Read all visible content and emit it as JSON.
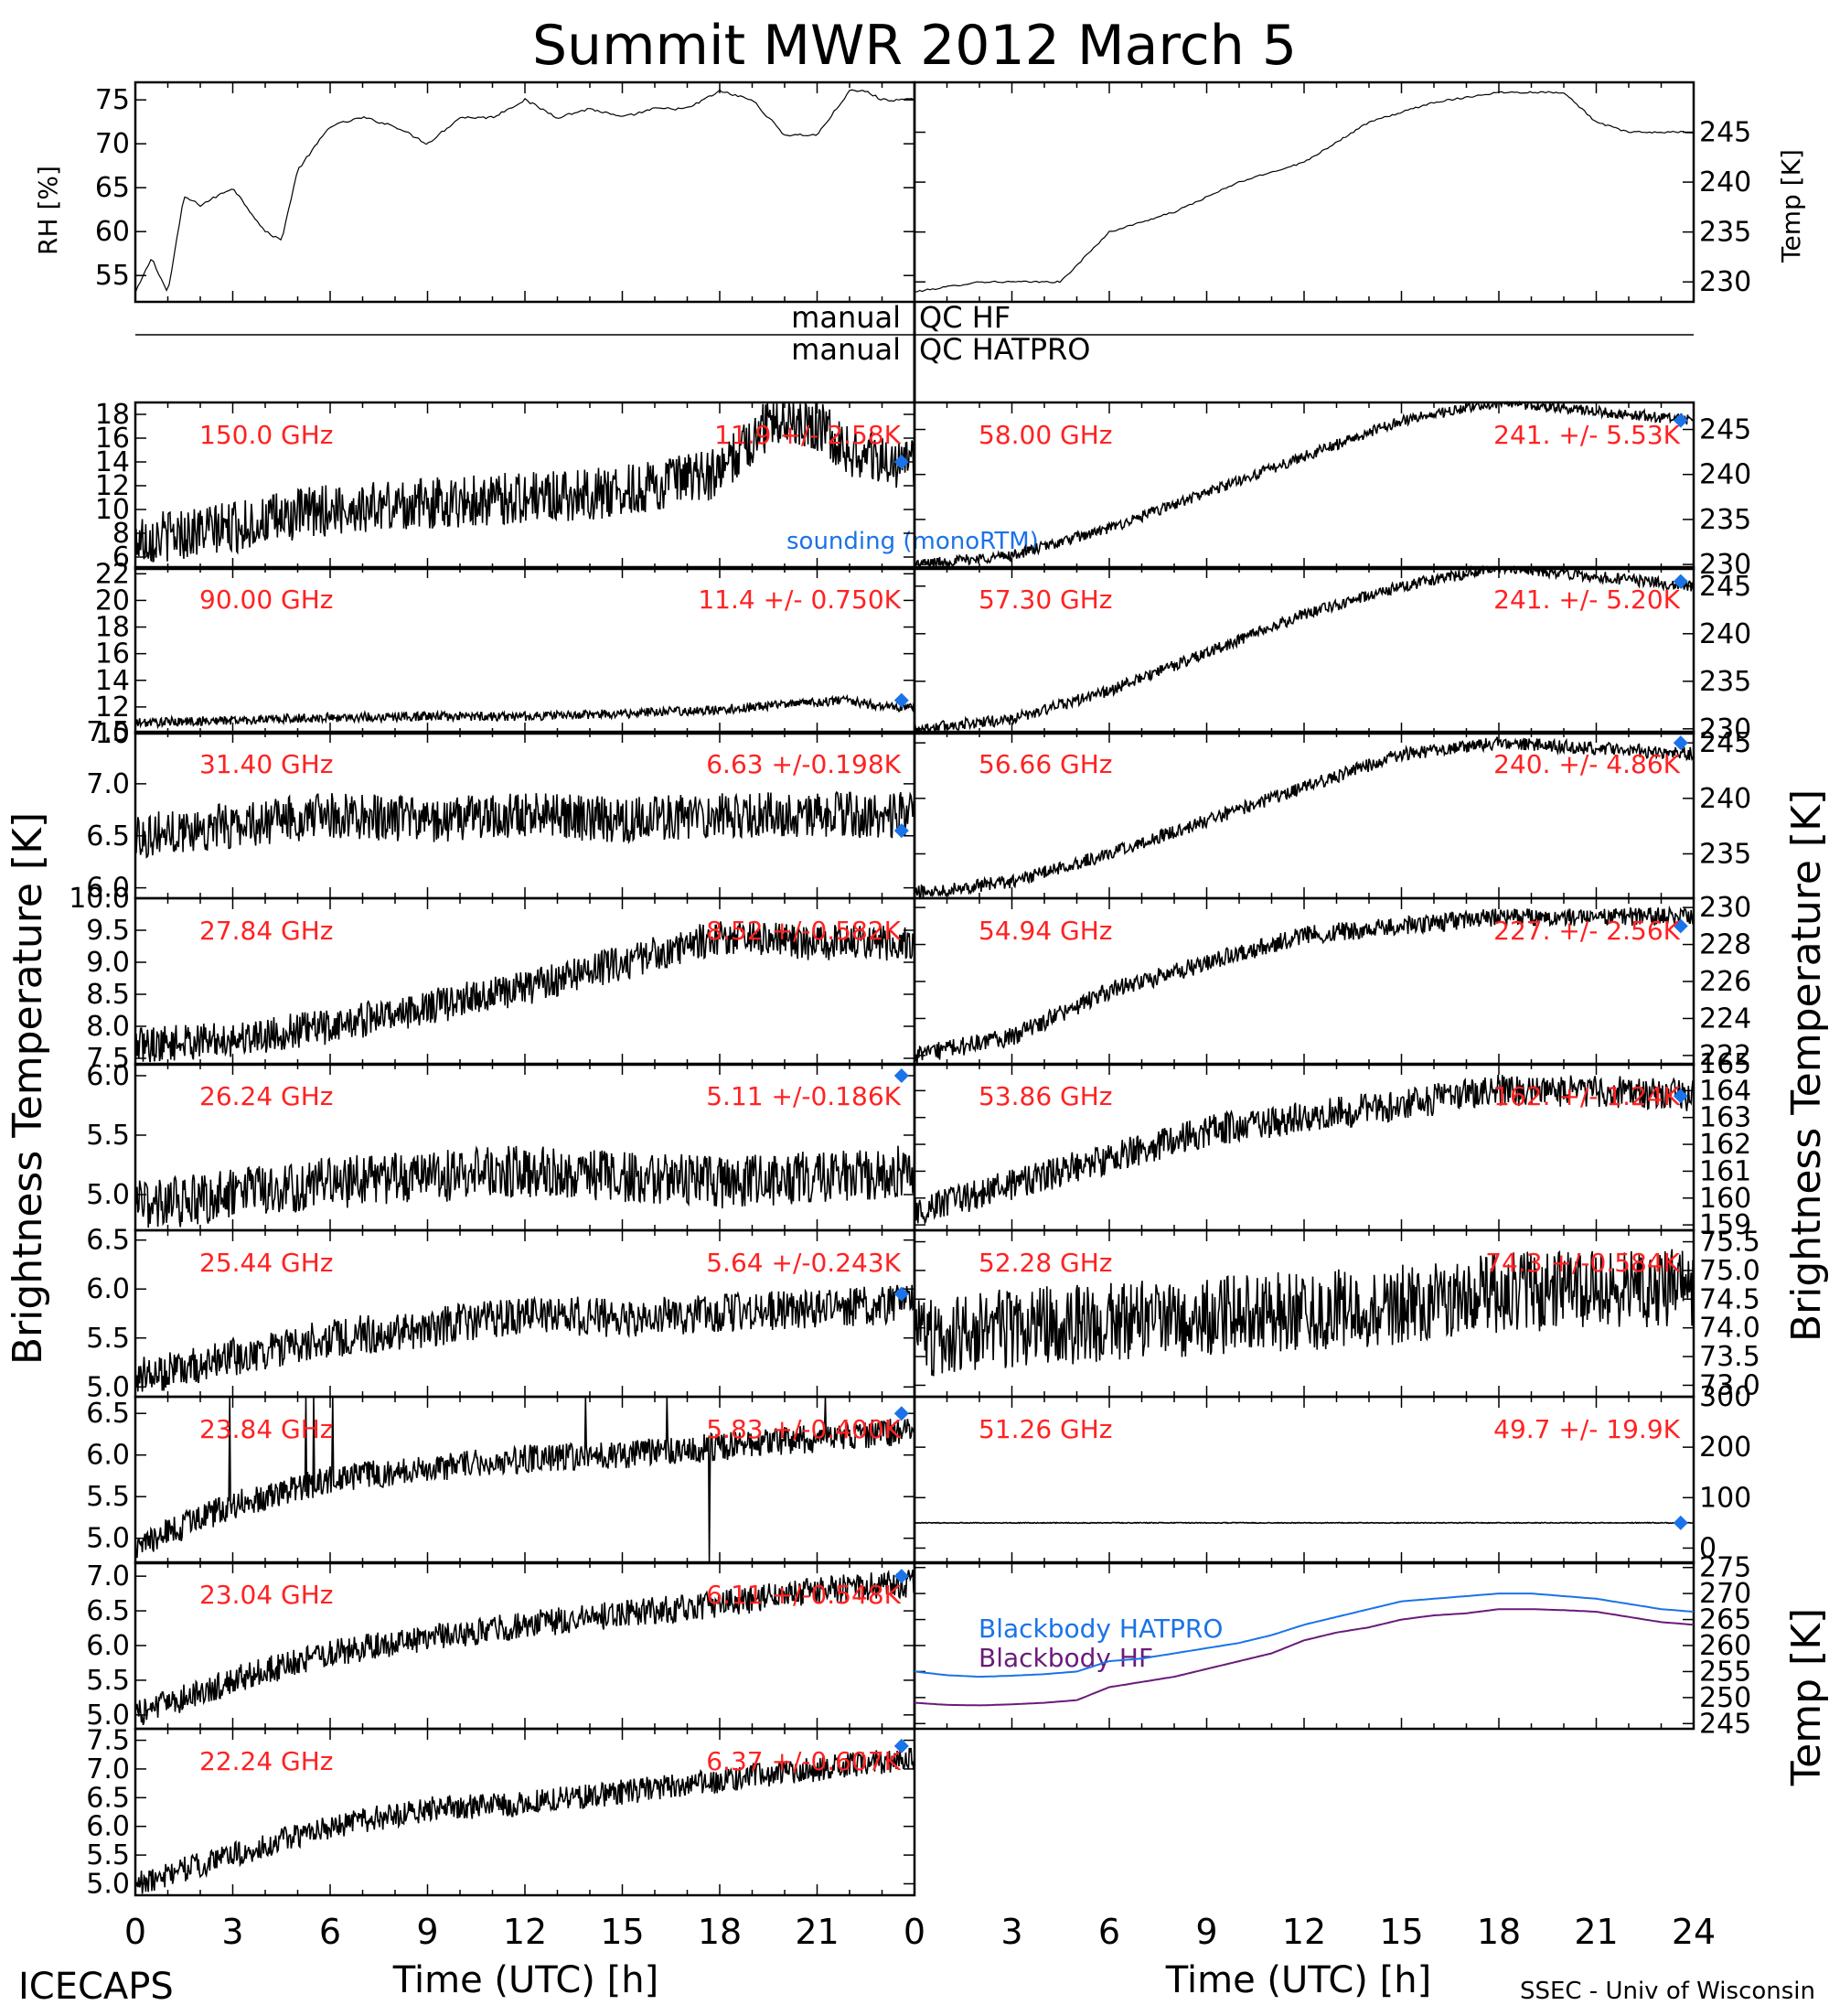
{
  "title": "Summit MWR 2012 March 5",
  "footer": {
    "left": "ICECAPS",
    "right": "SSEC - Univ of Wisconsin"
  },
  "colors": {
    "label": "#ff2222",
    "sounding": "#1a73e8",
    "bb_hatpro": "#1a73e8",
    "bb_hf": "#6a1b7a",
    "trace": "#000000"
  },
  "qc": {
    "manual_left_1": "manual",
    "qc_right_1": "QC HF",
    "manual_left_2": "manual",
    "qc_right_2": "QC HATPRO"
  },
  "axes": {
    "x_ticks": [
      "0",
      "3",
      "6",
      "9",
      "12",
      "15",
      "18",
      "21",
      "0",
      "3",
      "6",
      "9",
      "12",
      "15",
      "18",
      "21",
      "24"
    ],
    "xlabel_left": "Time (UTC) [h]",
    "xlabel_right": "Time (UTC) [h]",
    "ylabel_left_top": "RH [%]",
    "ylabel_right_top": "Temp [K]",
    "ylabel_left_main": "Brightness Temperature [K]",
    "ylabel_right_main": "Brightness Temperature [K]",
    "ylabel_right_bottom": "Temp [K]"
  },
  "legend": {
    "sounding": "sounding (monoRTM)",
    "bb_hatpro": "Blackbody HATPRO",
    "bb_hf": "Blackbody HF"
  },
  "chart_data": [
    {
      "type": "line",
      "title": "RH",
      "ylabel": "RH [%]",
      "ylim": [
        52,
        77
      ],
      "yticks": [
        "55",
        "60",
        "65",
        "70",
        "75"
      ],
      "x": [
        0,
        0.5,
        1,
        1.5,
        2,
        3,
        4,
        4.5,
        5,
        6,
        7,
        8,
        9,
        10,
        11,
        12,
        13,
        14,
        15,
        16,
        17,
        18,
        19,
        20,
        21,
        22,
        22.5,
        23,
        24
      ],
      "values": [
        53,
        57,
        53,
        64,
        63,
        65,
        60,
        59,
        67,
        72,
        73,
        72,
        70,
        73,
        73,
        75,
        73,
        74,
        73,
        74,
        74,
        76,
        75,
        71,
        71,
        76,
        76,
        75,
        75
      ]
    },
    {
      "type": "line",
      "title": "Temp",
      "ylabel": "Temp [K]",
      "ylim": [
        228,
        250
      ],
      "yticks": [
        "230",
        "235",
        "240",
        "245"
      ],
      "x": [
        0,
        2,
        4,
        4.5,
        6,
        8,
        10,
        12,
        14,
        15,
        16,
        18,
        20,
        21,
        22,
        24
      ],
      "values": [
        229,
        230,
        230,
        230,
        235,
        237,
        240,
        242,
        246,
        247,
        248,
        249,
        249,
        246,
        245,
        245
      ]
    },
    {
      "type": "line",
      "title": "150.0 GHz",
      "stat": "11.9 +/- 2.58K",
      "ylim": [
        5,
        19
      ],
      "yticks": [
        "6",
        "8",
        "10",
        "12",
        "14",
        "16",
        "18"
      ],
      "x": [
        0,
        3,
        6,
        9,
        12,
        15,
        18,
        19,
        20,
        21,
        22,
        23,
        24
      ],
      "values": [
        7.5,
        8.5,
        10,
        10.5,
        11,
        11.5,
        13,
        16,
        18,
        17,
        15,
        14,
        14
      ],
      "sounding": {
        "x": 23.6,
        "y": 14
      }
    },
    {
      "type": "line",
      "title": "58.00 GHz",
      "stat": "241. +/- 5.53K",
      "ylim": [
        229.5,
        248
      ],
      "yticks": [
        "230",
        "235",
        "240",
        "245"
      ],
      "x": [
        0,
        3,
        6,
        9,
        12,
        15,
        18,
        21,
        24
      ],
      "values": [
        230,
        231,
        234,
        238,
        242,
        246,
        248,
        247,
        246
      ],
      "sounding": {
        "x": 23.6,
        "y": 246
      }
    },
    {
      "type": "line",
      "title": "90.00 GHz",
      "stat": "11.4 +/- 0.750K",
      "ylim": [
        10,
        22.5
      ],
      "yticks": [
        "10",
        "12",
        "14",
        "16",
        "18",
        "20",
        "22"
      ],
      "x": [
        0,
        3,
        6,
        9,
        12,
        15,
        18,
        20,
        22,
        23,
        24
      ],
      "values": [
        10.8,
        11,
        11.2,
        11.3,
        11.3,
        11.5,
        11.8,
        12.2,
        12.5,
        12,
        12
      ],
      "sounding": {
        "x": 23.6,
        "y": 12.5
      }
    },
    {
      "type": "line",
      "title": "57.30 GHz",
      "stat": "241. +/- 5.20K",
      "ylim": [
        229.5,
        247
      ],
      "yticks": [
        "230",
        "235",
        "240",
        "245"
      ],
      "x": [
        0,
        3,
        6,
        9,
        12,
        15,
        18,
        21,
        24
      ],
      "values": [
        230,
        231,
        234,
        238,
        242,
        245,
        247,
        246,
        245
      ],
      "sounding": {
        "x": 23.6,
        "y": 245.5
      }
    },
    {
      "type": "line",
      "title": "31.40 GHz",
      "stat": "6.63 +/-0.198K",
      "ylim": [
        5.9,
        7.5
      ],
      "yticks": [
        "6.0",
        "6.5",
        "7.0",
        "7.5"
      ],
      "x": [
        0,
        3,
        6,
        9,
        12,
        15,
        18,
        21,
        24
      ],
      "values": [
        6.5,
        6.6,
        6.7,
        6.65,
        6.7,
        6.65,
        6.7,
        6.7,
        6.7
      ],
      "sounding": {
        "x": 23.6,
        "y": 6.55
      }
    },
    {
      "type": "line",
      "title": "56.66 GHz",
      "stat": "240. +/- 4.86K",
      "ylim": [
        231,
        246
      ],
      "yticks": [
        "235",
        "240",
        "245"
      ],
      "x": [
        0,
        3,
        6,
        9,
        12,
        15,
        18,
        21,
        24
      ],
      "values": [
        231.5,
        232.5,
        235,
        238,
        241,
        244,
        245,
        244.5,
        244
      ],
      "sounding": {
        "x": 23.6,
        "y": 245
      }
    },
    {
      "type": "line",
      "title": "27.84 GHz",
      "stat": "8.52 +/-0.582K",
      "ylim": [
        7.4,
        10
      ],
      "yticks": [
        "7.5",
        "8.0",
        "8.5",
        "9.0",
        "9.5",
        "10.0"
      ],
      "x": [
        0,
        3,
        6,
        9,
        12,
        15,
        18,
        21,
        24
      ],
      "values": [
        7.7,
        7.8,
        8.0,
        8.3,
        8.6,
        9.0,
        9.4,
        9.3,
        9.3
      ],
      "sounding": null
    },
    {
      "type": "line",
      "title": "54.94 GHz",
      "stat": "227. +/- 2.56K",
      "ylim": [
        221.5,
        230.5
      ],
      "yticks": [
        "222",
        "224",
        "226",
        "228",
        "230"
      ],
      "x": [
        0,
        3,
        6,
        9,
        12,
        15,
        18,
        21,
        24
      ],
      "values": [
        222,
        223,
        225.5,
        227,
        228.5,
        229,
        229.5,
        229.5,
        229.5
      ],
      "sounding": {
        "x": 23.6,
        "y": 229
      }
    },
    {
      "type": "line",
      "title": "26.24 GHz",
      "stat": "5.11 +/-0.186K",
      "ylim": [
        4.7,
        6.1
      ],
      "yticks": [
        "5.0",
        "5.5",
        "6.0"
      ],
      "x": [
        0,
        3,
        6,
        9,
        12,
        15,
        18,
        21,
        24
      ],
      "values": [
        4.9,
        5.0,
        5.1,
        5.15,
        5.2,
        5.15,
        5.1,
        5.15,
        5.2
      ],
      "sounding": {
        "x": 23.6,
        "y": 6.0
      }
    },
    {
      "type": "line",
      "title": "53.86 GHz",
      "stat": "162. +/- 1.24K",
      "ylim": [
        158.8,
        165
      ],
      "yticks": [
        "159",
        "160",
        "161",
        "162",
        "163",
        "164",
        "165"
      ],
      "x": [
        0,
        3,
        6,
        9,
        12,
        15,
        18,
        21,
        24
      ],
      "values": [
        159.5,
        160.5,
        161.5,
        162.5,
        163,
        163.5,
        164,
        164,
        163.8
      ],
      "sounding": {
        "x": 23.6,
        "y": 163.8
      }
    },
    {
      "type": "line",
      "title": "25.44 GHz",
      "stat": "5.64 +/-0.243K",
      "ylim": [
        4.9,
        6.6
      ],
      "yticks": [
        "5.0",
        "5.5",
        "6.0",
        "6.5"
      ],
      "x": [
        0,
        3,
        6,
        9,
        12,
        15,
        18,
        21,
        24
      ],
      "values": [
        5.1,
        5.3,
        5.5,
        5.6,
        5.75,
        5.7,
        5.75,
        5.8,
        5.85
      ],
      "sounding": {
        "x": 23.6,
        "y": 5.95
      }
    },
    {
      "type": "line",
      "title": "52.28 GHz",
      "stat": "74.3 +/-0.584K",
      "ylim": [
        72.8,
        75.7
      ],
      "yticks": [
        "73.0",
        "73.5",
        "74.0",
        "74.5",
        "75.0",
        "75.5"
      ],
      "x": [
        0,
        3,
        6,
        9,
        12,
        15,
        18,
        21,
        24
      ],
      "values": [
        73.8,
        74.0,
        74.1,
        74.2,
        74.3,
        74.4,
        74.6,
        74.7,
        74.7
      ],
      "sounding": null
    },
    {
      "type": "line",
      "title": "23.84 GHz",
      "stat": "5.83 +/-0.400K",
      "ylim": [
        4.7,
        6.7
      ],
      "yticks": [
        "5.0",
        "5.5",
        "6.0",
        "6.5"
      ],
      "x": [
        0,
        3,
        6,
        9,
        12,
        15,
        18,
        21,
        24
      ],
      "values": [
        4.9,
        5.4,
        5.7,
        5.85,
        5.95,
        6.0,
        6.1,
        6.2,
        6.3
      ],
      "sounding": {
        "x": 23.6,
        "y": 6.5
      }
    },
    {
      "type": "line",
      "title": "51.26 GHz",
      "stat": "49.7 +/- 19.9K",
      "ylim": [
        -30,
        300
      ],
      "yticks": [
        "0",
        "100",
        "200",
        "300"
      ],
      "x": [
        0,
        3,
        6,
        9,
        12,
        15,
        18,
        21,
        24
      ],
      "values": [
        50,
        50,
        50,
        50,
        50,
        50,
        50,
        50,
        50
      ],
      "sounding": {
        "x": 23.6,
        "y": 50
      }
    },
    {
      "type": "line",
      "title": "23.04 GHz",
      "stat": "6.11 +/-0.548K",
      "ylim": [
        4.8,
        7.2
      ],
      "yticks": [
        "5.0",
        "5.5",
        "6.0",
        "6.5",
        "7.0"
      ],
      "x": [
        0,
        3,
        6,
        9,
        12,
        15,
        18,
        21,
        24
      ],
      "values": [
        5.0,
        5.5,
        5.9,
        6.1,
        6.3,
        6.45,
        6.6,
        6.8,
        6.9
      ],
      "sounding": {
        "x": 23.6,
        "y": 7.0
      }
    },
    {
      "type": "line",
      "title": "Blackbody",
      "ylim": [
        244,
        276
      ],
      "yticks": [
        "245",
        "250",
        "255",
        "260",
        "265",
        "270",
        "275"
      ],
      "series": [
        {
          "name": "Blackbody HATPRO",
          "x": [
            0,
            1,
            2,
            3,
            4,
            5,
            6,
            7,
            8,
            9,
            10,
            11,
            12,
            13,
            14,
            15,
            16,
            17,
            18,
            19,
            20,
            21,
            22,
            23,
            24
          ],
          "values": [
            255,
            254.3,
            254,
            254.2,
            254.5,
            255,
            257,
            257.5,
            258.5,
            259.5,
            260.5,
            262,
            264,
            265.5,
            267,
            268.5,
            269,
            269.5,
            270,
            270,
            269.5,
            269,
            268,
            267,
            266.5
          ]
        },
        {
          "name": "Blackbody HF",
          "x": [
            0,
            1,
            2,
            3,
            4,
            5,
            6,
            7,
            8,
            9,
            10,
            11,
            12,
            13,
            14,
            15,
            16,
            17,
            18,
            19,
            20,
            21,
            22,
            23,
            24
          ],
          "values": [
            249,
            248.6,
            248.5,
            248.7,
            249,
            249.5,
            252,
            253,
            254,
            255.5,
            257,
            258.5,
            261,
            262.5,
            263.5,
            265,
            265.8,
            266.2,
            267,
            267,
            266.8,
            266.5,
            265.5,
            264.5,
            264
          ]
        }
      ]
    },
    {
      "type": "line",
      "title": "22.24 GHz",
      "stat": "6.37 +/-0.607K",
      "ylim": [
        4.8,
        7.7
      ],
      "yticks": [
        "5.0",
        "5.5",
        "6.0",
        "6.5",
        "7.0",
        "7.5"
      ],
      "x": [
        0,
        3,
        6,
        9,
        12,
        15,
        18,
        21,
        24
      ],
      "values": [
        5.0,
        5.5,
        6.0,
        6.3,
        6.4,
        6.6,
        6.8,
        7.0,
        7.2
      ],
      "sounding": {
        "x": 23.6,
        "y": 7.4
      }
    }
  ]
}
